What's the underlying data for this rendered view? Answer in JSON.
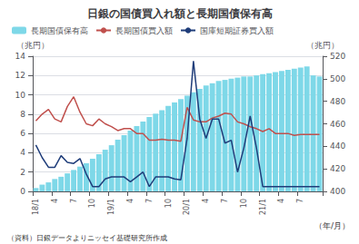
{
  "chart_data": {
    "type": "bar",
    "title": "日銀の国債買入れ額と長期国債保有高",
    "ylabel": "（兆円）",
    "y2label": "（兆円）",
    "xlabel": "（年/月）",
    "footnote": "（資料）日銀データよりニッセイ基礎研究所作成",
    "categories": [
      "18/1",
      null,
      null,
      "4",
      null,
      null,
      "7",
      null,
      null,
      "10",
      null,
      null,
      "19/1",
      null,
      null,
      "4",
      null,
      null,
      "7",
      null,
      null,
      "10",
      null,
      null,
      "20/1",
      null,
      null,
      "4",
      null,
      null,
      "7",
      null,
      null,
      "10",
      null,
      null,
      "21/1",
      null,
      null,
      "4",
      null,
      null,
      "7",
      null,
      null,
      null
    ],
    "ylim": [
      0,
      14
    ],
    "yticks": [
      0,
      2,
      4,
      6,
      8,
      10,
      12,
      14
    ],
    "y2lim": [
      400,
      520
    ],
    "y2ticks": [
      400,
      420,
      440,
      460,
      480,
      500,
      520
    ],
    "grid": true,
    "legend": "upper left",
    "series": [
      {
        "name": "長期国債保有高",
        "type": "bar",
        "axis": "y2",
        "color": "#7ED8E8",
        "values": [
          403,
          406,
          408,
          411,
          413,
          416,
          419,
          422,
          425,
          429,
          433,
          437,
          441,
          446,
          450,
          454,
          458,
          462,
          466,
          469,
          472,
          476,
          479,
          482,
          485,
          488,
          491,
          494,
          496,
          498,
          499,
          500,
          501,
          502,
          502,
          503,
          504,
          505,
          506,
          507,
          508,
          509,
          510,
          511,
          503,
          502
        ]
      },
      {
        "name": "長期国債買入額",
        "type": "line",
        "color": "#C0504D",
        "values": [
          7.3,
          8.0,
          8.5,
          7.5,
          7.2,
          8.8,
          9.8,
          8.2,
          7.0,
          6.8,
          7.5,
          7.0,
          6.7,
          6.3,
          6.5,
          6.5,
          6.0,
          6.0,
          5.3,
          5.3,
          5.4,
          5.3,
          5.3,
          5.2,
          8.7,
          7.4,
          7.2,
          7.2,
          7.6,
          7.8,
          8.1,
          8.0,
          7.2,
          7.0,
          6.7,
          6.5,
          6.2,
          6.5,
          6.0,
          6.0,
          6.0,
          5.8,
          5.9,
          5.9,
          5.9,
          5.9
        ]
      },
      {
        "name": "国庫短期証券買入額",
        "type": "line",
        "color": "#1F3D7A",
        "values": [
          4.8,
          3.5,
          2.5,
          2.5,
          3.7,
          3.0,
          2.9,
          3.4,
          1.8,
          0.5,
          0.5,
          1.3,
          1.5,
          1.5,
          1.5,
          1.0,
          1.5,
          2.0,
          0.5,
          1.5,
          1.5,
          1.5,
          1.3,
          1.2,
          5.5,
          13.5,
          7.5,
          5.5,
          7.5,
          7.5,
          5.0,
          5.3,
          2.0,
          4.5,
          7.8,
          4.5,
          0.5,
          0.5,
          0.5,
          0.5,
          0.5,
          0.5,
          0.5,
          0.5,
          0.5,
          0.5
        ]
      }
    ]
  }
}
